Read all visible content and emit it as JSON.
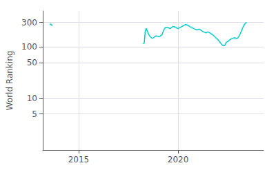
{
  "chart_data": {
    "type": "line",
    "ylabel": "World Ranking",
    "color": "#00CCCC",
    "log": "y",
    "grid": true,
    "xlim": [
      2013.2,
      2024.3
    ],
    "ylim": [
      1,
      500
    ],
    "xticks": [
      2015,
      2020
    ],
    "yticks": [
      300,
      100,
      50,
      10,
      5
    ],
    "x": [
      2013.55,
      2013.6,
      2013.65,
      2013.68,
      null,
      2018.25,
      2018.3,
      2018.35,
      2018.4,
      2018.45,
      2018.5,
      2018.55,
      2018.6,
      2018.65,
      2018.7,
      2018.75,
      2018.8,
      2018.85,
      2018.9,
      2018.95,
      2019.0,
      2019.05,
      2019.1,
      2019.15,
      2019.2,
      2019.25,
      2019.3,
      2019.35,
      2019.4,
      2019.45,
      2019.5,
      2019.55,
      2019.6,
      2019.65,
      2019.7,
      2019.75,
      2019.8,
      2019.85,
      2019.9,
      2019.95,
      2020.0,
      2020.05,
      2020.1,
      2020.15,
      2020.2,
      2020.25,
      2020.3,
      2020.35,
      2020.4,
      2020.45,
      2020.5,
      2020.55,
      2020.6,
      2020.65,
      2020.7,
      2020.75,
      2020.8,
      2020.85,
      2020.9,
      2020.95,
      2021.0,
      2021.05,
      2021.1,
      2021.15,
      2021.2,
      2021.25,
      2021.3,
      2021.35,
      2021.4,
      2021.45,
      2021.5,
      2021.55,
      2021.6,
      2021.65,
      2021.7,
      2021.75,
      2021.8,
      2021.85,
      2021.9,
      2021.95,
      2022.0,
      2022.05,
      2022.1,
      2022.15,
      2022.2,
      2022.25,
      2022.3,
      2022.35,
      2022.4,
      2022.45,
      2022.5,
      2022.55,
      2022.6,
      2022.65,
      2022.7,
      2022.75,
      2022.8,
      2022.85,
      2022.9,
      2022.95,
      2023.0,
      2023.05,
      2023.1,
      2023.15,
      2023.2,
      2023.25,
      2023.3,
      2023.35,
      2023.4,
      2023.45
    ],
    "values": [
      270,
      280,
      265,
      258,
      null,
      115,
      118,
      200,
      230,
      205,
      185,
      170,
      158,
      152,
      148,
      150,
      155,
      160,
      165,
      162,
      160,
      158,
      162,
      168,
      175,
      200,
      220,
      235,
      240,
      242,
      238,
      232,
      228,
      235,
      245,
      250,
      248,
      243,
      238,
      232,
      228,
      235,
      240,
      245,
      250,
      258,
      265,
      270,
      272,
      268,
      262,
      255,
      248,
      242,
      238,
      232,
      228,
      222,
      218,
      215,
      218,
      222,
      218,
      212,
      205,
      200,
      195,
      192,
      188,
      192,
      196,
      192,
      188,
      182,
      178,
      172,
      165,
      158,
      152,
      145,
      140,
      132,
      125,
      118,
      112,
      108,
      105,
      108,
      118,
      125,
      128,
      132,
      138,
      142,
      145,
      148,
      150,
      152,
      148,
      145,
      150,
      158,
      172,
      190,
      210,
      235,
      258,
      278,
      292,
      300
    ]
  }
}
